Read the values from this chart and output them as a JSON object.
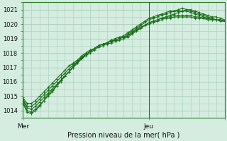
{
  "title": "",
  "xlabel": "Pression niveau de la mer( hPa )",
  "ylabel": "",
  "bg_color": "#d4ede0",
  "grid_color": "#a8cbb8",
  "line_color": "#1a6e1a",
  "ylim": [
    1013.5,
    1021.5
  ],
  "xlim": [
    0,
    48
  ],
  "x_ticks": [
    0,
    30,
    48
  ],
  "x_labels": [
    "Mer",
    "Jeu",
    ""
  ],
  "y_ticks": [
    1014,
    1015,
    1016,
    1017,
    1018,
    1019,
    1020,
    1021
  ],
  "vline_x": 30,
  "series": [
    [
      1014.7,
      1014.2,
      1014.1,
      1014.3,
      1014.6,
      1014.9,
      1015.2,
      1015.5,
      1015.8,
      1016.1,
      1016.4,
      1016.7,
      1017.0,
      1017.3,
      1017.6,
      1017.8,
      1018.0,
      1018.2,
      1018.4,
      1018.5,
      1018.6,
      1018.7,
      1018.8,
      1018.9,
      1019.0,
      1019.1,
      1019.3,
      1019.5,
      1019.7,
      1019.9,
      1020.1,
      1020.2,
      1020.3,
      1020.4,
      1020.5,
      1020.6,
      1020.7,
      1020.8,
      1020.9,
      1021.0,
      1021.0,
      1020.9,
      1020.8,
      1020.7,
      1020.6,
      1020.5,
      1020.5,
      1020.4,
      1020.3
    ],
    [
      1014.8,
      1014.3,
      1014.3,
      1014.5,
      1014.8,
      1015.1,
      1015.4,
      1015.7,
      1016.0,
      1016.3,
      1016.6,
      1016.9,
      1017.2,
      1017.4,
      1017.7,
      1017.9,
      1018.1,
      1018.3,
      1018.5,
      1018.6,
      1018.7,
      1018.8,
      1018.9,
      1019.0,
      1019.1,
      1019.2,
      1019.4,
      1019.6,
      1019.8,
      1019.9,
      1020.1,
      1020.2,
      1020.3,
      1020.4,
      1020.5,
      1020.5,
      1020.6,
      1020.6,
      1020.6,
      1020.6,
      1020.6,
      1020.5,
      1020.5,
      1020.4,
      1020.4,
      1020.3,
      1020.3,
      1020.3,
      1020.2
    ],
    [
      1014.6,
      1014.0,
      1013.9,
      1014.1,
      1014.4,
      1014.7,
      1015.1,
      1015.4,
      1015.7,
      1016.1,
      1016.4,
      1016.7,
      1017.1,
      1017.4,
      1017.7,
      1017.9,
      1018.1,
      1018.3,
      1018.5,
      1018.6,
      1018.7,
      1018.8,
      1018.9,
      1019.0,
      1019.1,
      1019.3,
      1019.5,
      1019.7,
      1019.9,
      1020.1,
      1020.3,
      1020.4,
      1020.5,
      1020.6,
      1020.7,
      1020.8,
      1020.9,
      1021.0,
      1021.1,
      1021.0,
      1020.9,
      1020.8,
      1020.7,
      1020.6,
      1020.5,
      1020.4,
      1020.3,
      1020.2,
      1020.2
    ],
    [
      1014.5,
      1013.9,
      1013.8,
      1014.0,
      1014.3,
      1014.7,
      1015.0,
      1015.3,
      1015.7,
      1016.0,
      1016.4,
      1016.7,
      1017.0,
      1017.3,
      1017.6,
      1017.9,
      1018.1,
      1018.3,
      1018.5,
      1018.6,
      1018.7,
      1018.9,
      1019.0,
      1019.1,
      1019.2,
      1019.4,
      1019.6,
      1019.8,
      1020.0,
      1020.2,
      1020.4,
      1020.5,
      1020.6,
      1020.7,
      1020.8,
      1020.9,
      1020.9,
      1020.9,
      1020.9,
      1020.9,
      1020.8,
      1020.7,
      1020.6,
      1020.5,
      1020.4,
      1020.4,
      1020.3,
      1020.3,
      1020.2
    ],
    [
      1014.9,
      1014.5,
      1014.5,
      1014.7,
      1015.0,
      1015.3,
      1015.6,
      1015.9,
      1016.2,
      1016.5,
      1016.8,
      1017.1,
      1017.3,
      1017.5,
      1017.8,
      1018.0,
      1018.2,
      1018.3,
      1018.5,
      1018.6,
      1018.7,
      1018.8,
      1018.9,
      1019.0,
      1019.1,
      1019.2,
      1019.4,
      1019.6,
      1019.7,
      1019.9,
      1020.0,
      1020.1,
      1020.2,
      1020.3,
      1020.4,
      1020.4,
      1020.5,
      1020.5,
      1020.5,
      1020.5,
      1020.5,
      1020.4,
      1020.4,
      1020.4,
      1020.3,
      1020.3,
      1020.3,
      1020.3,
      1020.2
    ]
  ]
}
